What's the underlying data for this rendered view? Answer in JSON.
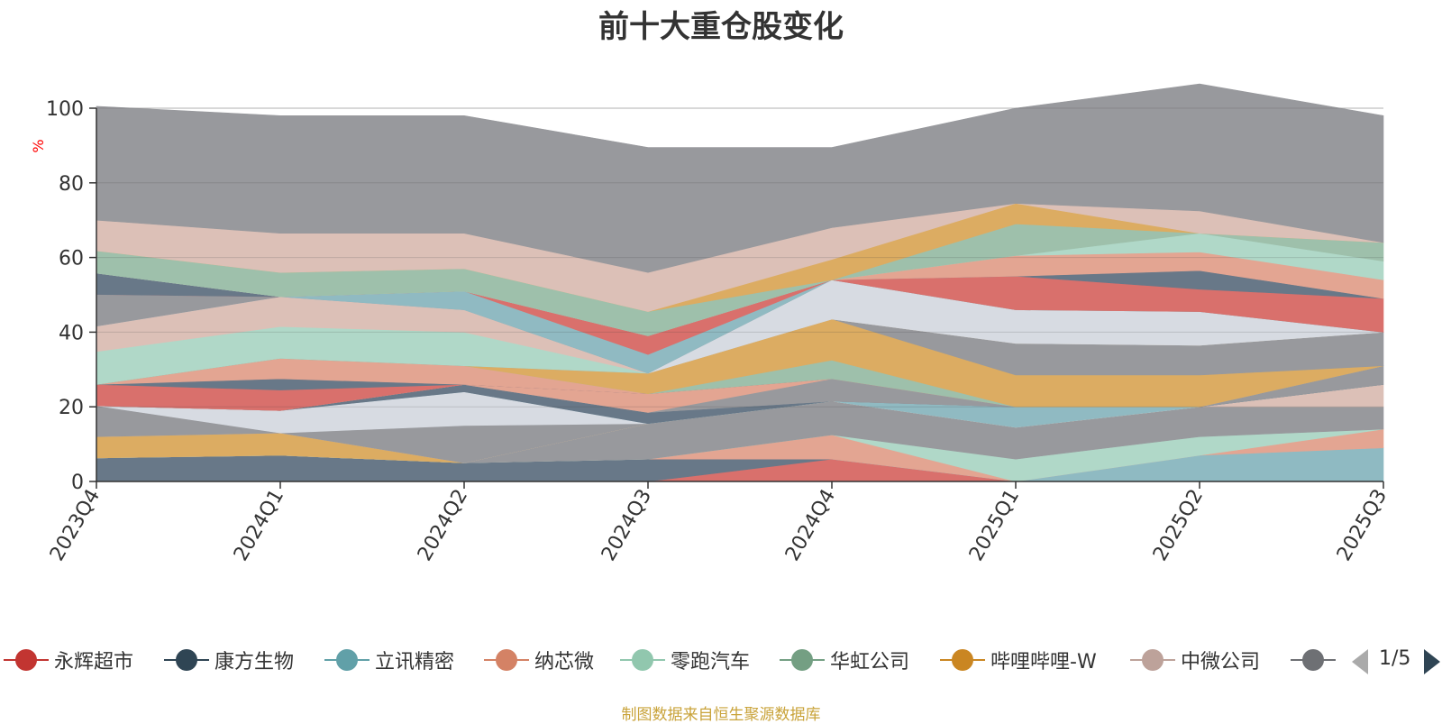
{
  "chart_data": {
    "type": "area",
    "title": "前十大重仓股变化",
    "ylabel": "%",
    "ylim": [
      0,
      100
    ],
    "yticks": [
      0,
      20,
      40,
      60,
      80,
      100
    ],
    "categories": [
      "2023Q4",
      "2024Q1",
      "2024Q2",
      "2024Q3",
      "2024Q4",
      "2025Q1",
      "2025Q2",
      "2025Q3"
    ],
    "legend_position": "bottom",
    "legend_page": "1/5",
    "source": "制图数据来自恒生聚源数据库",
    "series": [
      {
        "name": "永辉超市",
        "color": "#d9706c",
        "values": [
          0,
          0,
          0,
          0,
          6,
          0,
          0,
          0
        ]
      },
      {
        "name": "",
        "color": "#687888",
        "values": [
          6.3,
          7,
          5,
          6,
          0,
          0,
          0,
          0
        ]
      },
      {
        "name": "立讯精密",
        "color": "#8fbac2",
        "values": [
          0,
          0,
          0,
          0,
          0,
          0,
          7,
          9
        ]
      },
      {
        "name": "纳芯微",
        "color": "#e3a592",
        "values": [
          0,
          0,
          0,
          0,
          6.5,
          0,
          0,
          5
        ]
      },
      {
        "name": "零跑汽车",
        "color": "#b0d8c8",
        "values": [
          0,
          0,
          0,
          0,
          0,
          6,
          5,
          0
        ]
      },
      {
        "name": "",
        "color": "#98999d",
        "values": [
          0,
          0,
          0,
          9.5,
          9,
          8.5,
          8,
          6
        ]
      },
      {
        "name": "",
        "color": "#dcc0b7",
        "values": [
          0,
          0,
          0,
          0,
          0,
          0,
          0,
          6
        ]
      },
      {
        "name": "华虹公司",
        "color": "#9ec0ab",
        "values": [
          0,
          0,
          0,
          0,
          0,
          0,
          0,
          0
        ]
      },
      {
        "name": "哔哩哔哩-W",
        "color": "#dcac62",
        "values": [
          5.7,
          6,
          0,
          0,
          0,
          0,
          0,
          0
        ]
      },
      {
        "name": "中微公司",
        "color": "#d9bdb5",
        "values": [
          0,
          0,
          0,
          0,
          0,
          0,
          0,
          0
        ]
      },
      {
        "name": "",
        "color": "#98999d",
        "values": [
          8.3,
          0,
          10,
          0,
          0,
          0,
          0,
          0
        ]
      },
      {
        "name": "",
        "color": "#d7dbe2",
        "values": [
          0,
          6,
          9,
          0,
          0,
          0,
          0,
          0
        ]
      },
      {
        "name": "",
        "color": "#90bac2",
        "values": [
          0,
          0,
          0,
          0,
          0,
          5.5,
          0,
          0
        ]
      },
      {
        "name": "",
        "color": "#687888",
        "values": [
          0,
          0,
          2,
          3,
          0,
          0,
          0,
          0
        ]
      },
      {
        "name": "",
        "color": "#98999d",
        "values": [
          0,
          0,
          0,
          0,
          0,
          0,
          0,
          5
        ]
      },
      {
        "name": "",
        "color": "#98999d",
        "values": [
          0,
          0,
          0,
          0,
          6,
          0,
          0,
          0
        ]
      },
      {
        "name": "",
        "color": "#e3a592",
        "values": [
          0,
          0,
          0,
          5,
          0,
          0,
          0,
          0
        ]
      },
      {
        "name": "",
        "color": "#d9706c",
        "values": [
          5.7,
          5.5,
          0,
          0,
          0,
          0,
          0,
          0
        ]
      },
      {
        "name": "",
        "color": "#687888",
        "values": [
          0,
          3,
          0,
          0,
          0,
          0,
          0,
          0
        ]
      },
      {
        "name": "",
        "color": "#e3a592",
        "values": [
          0,
          5.5,
          5,
          0,
          0,
          0,
          0,
          0
        ]
      },
      {
        "name": "",
        "color": "#9ec0ab",
        "values": [
          0,
          0,
          0,
          0,
          5,
          0,
          0,
          0
        ]
      },
      {
        "name": "",
        "color": "#dcac62",
        "values": [
          0,
          0,
          0,
          5.5,
          11,
          8.5,
          8.5,
          0
        ]
      },
      {
        "name": "",
        "color": "#98999d",
        "values": [
          0,
          0,
          0,
          0,
          0,
          8.5,
          8,
          9
        ]
      },
      {
        "name": "",
        "color": "#b0d8c8",
        "values": [
          8.8,
          8.5,
          9,
          0,
          0,
          0,
          0,
          0
        ]
      },
      {
        "name": "",
        "color": "#dcc0b7",
        "values": [
          6.8,
          8,
          6,
          0,
          0,
          0,
          0,
          0
        ]
      },
      {
        "name": "",
        "color": "#d7dbe2",
        "values": [
          0,
          0,
          0,
          0,
          10.5,
          9,
          9,
          0
        ]
      },
      {
        "name": "",
        "color": "#98999d",
        "values": [
          8.5,
          0,
          0,
          0,
          0,
          0,
          0,
          0
        ]
      },
      {
        "name": "",
        "color": "#90bac2",
        "values": [
          0,
          0,
          5,
          5,
          0,
          0,
          0,
          0
        ]
      },
      {
        "name": "",
        "color": "#d9706c",
        "values": [
          0,
          0,
          0,
          5,
          0,
          9,
          6,
          9
        ]
      },
      {
        "name": "",
        "color": "#687888",
        "values": [
          5.7,
          0,
          0,
          0,
          0,
          0,
          5,
          0
        ]
      },
      {
        "name": "",
        "color": "#e3a592",
        "values": [
          0,
          0,
          0,
          0,
          0,
          5.5,
          5,
          5
        ]
      },
      {
        "name": "",
        "color": "#b0d8c8",
        "values": [
          0,
          0,
          0,
          0,
          0,
          0,
          5,
          5
        ]
      },
      {
        "name": "",
        "color": "#9ec0ab",
        "values": [
          6,
          6.5,
          6,
          6.5,
          0,
          8.5,
          0,
          5
        ]
      },
      {
        "name": "",
        "color": "#dcac62",
        "values": [
          0,
          0,
          0,
          0,
          5.5,
          5.5,
          0,
          0
        ]
      },
      {
        "name": "",
        "color": "#dcc0b7",
        "values": [
          8.2,
          10.5,
          9.5,
          10.5,
          8.5,
          0,
          6,
          0
        ]
      },
      {
        "name": "",
        "color": "#98999d",
        "values": [
          30.5,
          31.5,
          31.5,
          33.5,
          21.5,
          25.5,
          34,
          34
        ]
      }
    ]
  },
  "legend": {
    "items": [
      {
        "label": "永辉超市",
        "color": "#c23531"
      },
      {
        "label": "康方生物",
        "color": "#2f4554"
      },
      {
        "label": "立讯精密",
        "color": "#61a0a8"
      },
      {
        "label": "纳芯微",
        "color": "#d48265"
      },
      {
        "label": "零跑汽车",
        "color": "#91c7ae"
      },
      {
        "label": "华虹公司",
        "color": "#749f83"
      },
      {
        "label": "哔哩哔哩-W",
        "color": "#ca8622"
      },
      {
        "label": "中微公司",
        "color": "#bda29a"
      },
      {
        "label": "",
        "color": "#6e7074"
      }
    ],
    "page_label": "1/5"
  },
  "colors": {
    "axis": "#333333",
    "grid": "#cccccc",
    "ylabel": "#ff0000",
    "source_note": "#c9a33a"
  }
}
